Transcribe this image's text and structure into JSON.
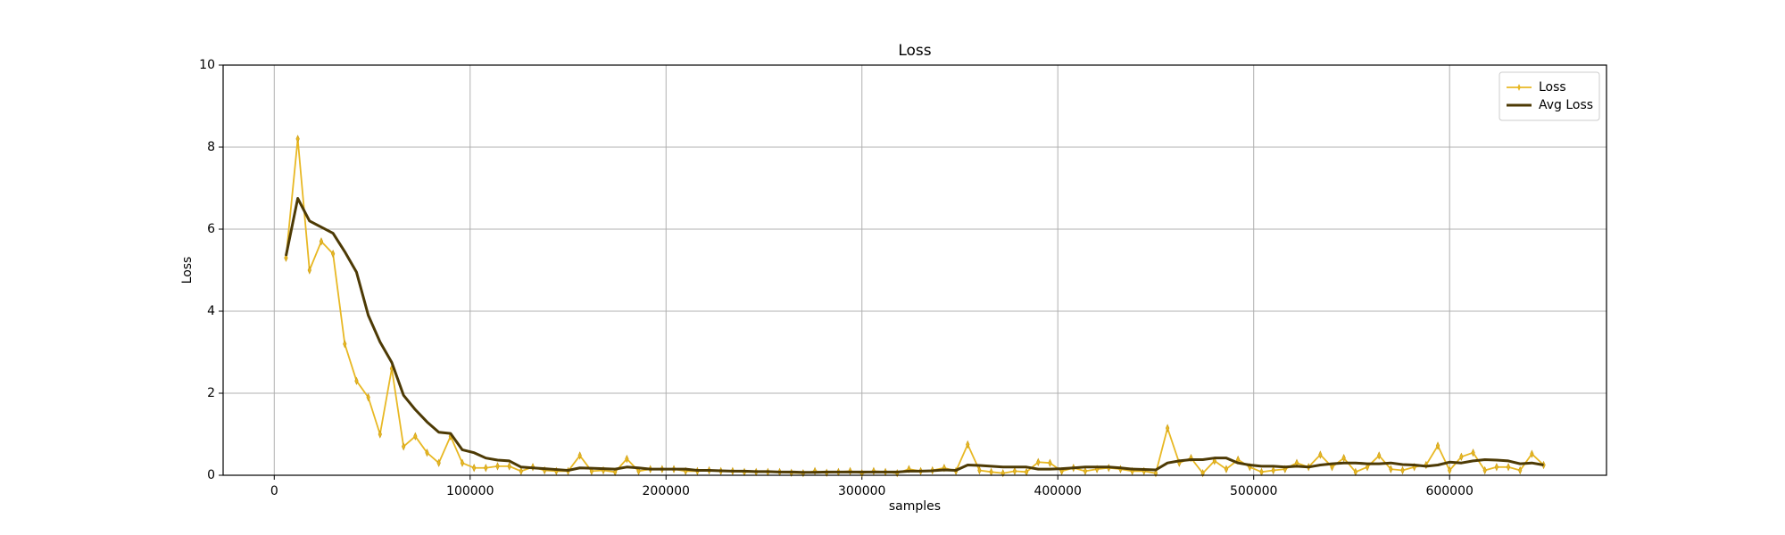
{
  "chart_data": {
    "type": "line",
    "title": "Loss",
    "xlabel": "samples",
    "ylabel": "Loss",
    "x": [
      6000,
      12000,
      18000,
      24000,
      30000,
      36000,
      42000,
      48000,
      54000,
      60000,
      66000,
      72000,
      78000,
      84000,
      90000,
      96000,
      102000,
      108000,
      114000,
      120000,
      126000,
      132000,
      138000,
      144000,
      150000,
      156000,
      162000,
      168000,
      174000,
      180000,
      186000,
      192000,
      198000,
      204000,
      210000,
      216000,
      222000,
      228000,
      234000,
      240000,
      246000,
      252000,
      258000,
      264000,
      270000,
      276000,
      282000,
      288000,
      294000,
      300000,
      306000,
      312000,
      318000,
      324000,
      330000,
      336000,
      342000,
      348000,
      354000,
      360000,
      366000,
      372000,
      378000,
      384000,
      390000,
      396000,
      402000,
      408000,
      414000,
      420000,
      426000,
      432000,
      438000,
      444000,
      450000,
      456000,
      462000,
      468000,
      474000,
      480000,
      486000,
      492000,
      498000,
      504000,
      510000,
      516000,
      522000,
      528000,
      534000,
      540000,
      546000,
      552000,
      558000,
      564000,
      570000,
      576000,
      582000,
      588000,
      594000,
      600000,
      606000,
      612000,
      618000,
      624000,
      630000,
      636000,
      642000,
      648000
    ],
    "series": [
      {
        "name": "Loss",
        "color": "#e8b824",
        "marker": true,
        "values": [
          5.3,
          8.2,
          5.0,
          5.7,
          5.4,
          3.2,
          2.3,
          1.9,
          1.0,
          2.6,
          0.7,
          0.95,
          0.55,
          0.3,
          0.95,
          0.3,
          0.18,
          0.18,
          0.22,
          0.22,
          0.1,
          0.2,
          0.12,
          0.1,
          0.1,
          0.48,
          0.1,
          0.12,
          0.08,
          0.4,
          0.1,
          0.15,
          0.15,
          0.15,
          0.1,
          0.1,
          0.12,
          0.1,
          0.1,
          0.08,
          0.08,
          0.08,
          0.08,
          0.06,
          0.05,
          0.1,
          0.06,
          0.08,
          0.1,
          0.05,
          0.1,
          0.08,
          0.05,
          0.15,
          0.1,
          0.12,
          0.18,
          0.1,
          0.75,
          0.12,
          0.08,
          0.05,
          0.1,
          0.08,
          0.32,
          0.3,
          0.1,
          0.18,
          0.1,
          0.15,
          0.18,
          0.15,
          0.1,
          0.1,
          0.05,
          1.15,
          0.3,
          0.42,
          0.05,
          0.35,
          0.15,
          0.38,
          0.2,
          0.08,
          0.12,
          0.15,
          0.3,
          0.2,
          0.5,
          0.2,
          0.42,
          0.08,
          0.2,
          0.48,
          0.15,
          0.12,
          0.2,
          0.25,
          0.72,
          0.12,
          0.45,
          0.55,
          0.12,
          0.2,
          0.2,
          0.12,
          0.52,
          0.25
        ]
      },
      {
        "name": "Avg Loss",
        "color": "#4d3a05",
        "marker": false,
        "values": [
          5.35,
          6.75,
          6.2,
          6.05,
          5.9,
          5.45,
          4.95,
          3.9,
          3.25,
          2.75,
          1.95,
          1.6,
          1.3,
          1.05,
          1.02,
          0.62,
          0.55,
          0.42,
          0.37,
          0.35,
          0.2,
          0.18,
          0.16,
          0.14,
          0.12,
          0.18,
          0.17,
          0.16,
          0.15,
          0.2,
          0.18,
          0.15,
          0.15,
          0.15,
          0.15,
          0.12,
          0.12,
          0.11,
          0.1,
          0.1,
          0.09,
          0.09,
          0.08,
          0.08,
          0.07,
          0.07,
          0.08,
          0.08,
          0.08,
          0.08,
          0.08,
          0.08,
          0.08,
          0.1,
          0.1,
          0.11,
          0.13,
          0.12,
          0.25,
          0.24,
          0.22,
          0.2,
          0.2,
          0.2,
          0.15,
          0.15,
          0.16,
          0.18,
          0.2,
          0.2,
          0.2,
          0.18,
          0.15,
          0.14,
          0.13,
          0.3,
          0.35,
          0.38,
          0.38,
          0.42,
          0.42,
          0.3,
          0.25,
          0.22,
          0.22,
          0.2,
          0.22,
          0.2,
          0.25,
          0.28,
          0.3,
          0.3,
          0.28,
          0.28,
          0.3,
          0.26,
          0.25,
          0.22,
          0.25,
          0.32,
          0.3,
          0.35,
          0.38,
          0.37,
          0.35,
          0.28,
          0.3,
          0.25
        ]
      }
    ],
    "xlim": [
      -26100,
      680100
    ],
    "xticks": [
      0,
      100000,
      200000,
      300000,
      400000,
      500000,
      600000
    ],
    "ylim": [
      0,
      10
    ],
    "yticks": [
      0,
      2,
      4,
      6,
      8,
      10
    ],
    "grid": true,
    "legend": "upper right"
  }
}
